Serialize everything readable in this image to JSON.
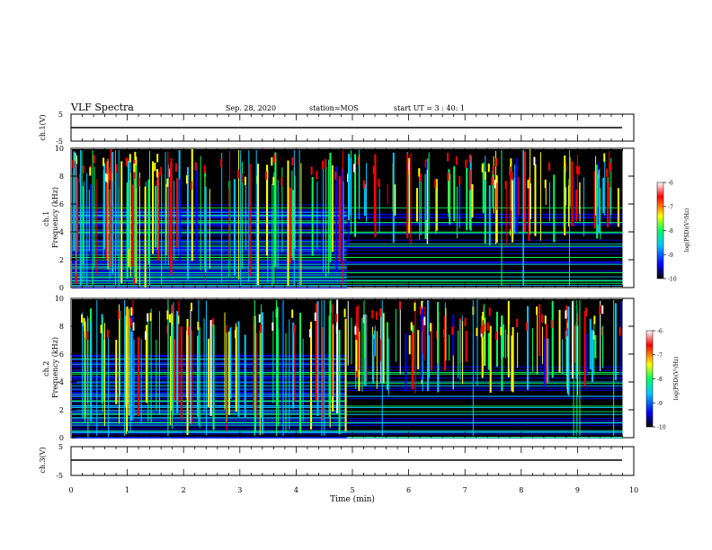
{
  "header": {
    "title": "VLF Spectra",
    "date": "Sep. 28, 2020",
    "station": "station=MOS",
    "start_time": "start UT =  3 : 40: 1"
  },
  "colors": {
    "background": "#000000",
    "colormap": [
      "#000000",
      "#0000ff",
      "#00c8ff",
      "#00ff60",
      "#ffff00",
      "#ff0000",
      "#ffffff"
    ]
  },
  "chart_data": [
    {
      "type": "line",
      "panel": "ch1-voltage",
      "ylabel": "ch.1(V)",
      "ylim": [
        -5,
        5
      ],
      "yticks": [
        "5",
        "-5"
      ],
      "x": [
        0,
        9.8
      ],
      "values": [
        0,
        0
      ]
    },
    {
      "type": "heatmap",
      "panel": "ch1-spectrogram",
      "ylabel": "ch.1\nFrequency (kHz)",
      "ylim": [
        0,
        10
      ],
      "yticks": [
        "0",
        "2",
        "4",
        "6",
        "8",
        "10"
      ],
      "xlim": [
        0,
        10
      ],
      "data_end_min": 9.8,
      "transition_min": 4.9,
      "colorbar": {
        "label": "log(PSD)(V²/Hz)",
        "range": [
          -10,
          -6
        ],
        "ticks": [
          "-6",
          "-7",
          "-8",
          "-9",
          "-10"
        ]
      }
    },
    {
      "type": "heatmap",
      "panel": "ch2-spectrogram",
      "ylabel": "ch.2\nFrequency (kHz)",
      "ylim": [
        0,
        10
      ],
      "yticks": [
        "0",
        "2",
        "4",
        "6",
        "8",
        "10"
      ],
      "xlim": [
        0,
        10
      ],
      "data_end_min": 9.8,
      "transition_min": 4.9,
      "colorbar": {
        "label": "log(PSD)(V²/Hz)",
        "range": [
          -10,
          -6
        ],
        "ticks": [
          "-6",
          "-7",
          "-8",
          "-9",
          "-10"
        ]
      }
    },
    {
      "type": "line",
      "panel": "ch3-voltage",
      "ylabel": "ch.3(V)",
      "ylim": [
        -5,
        5
      ],
      "yticks": [
        "5",
        "-5"
      ],
      "x": [
        0,
        9.8
      ],
      "values": [
        0,
        0
      ]
    }
  ],
  "xaxis": {
    "label": "Time (min)",
    "range": [
      0,
      10
    ],
    "ticks": [
      "0",
      "1",
      "2",
      "3",
      "4",
      "5",
      "6",
      "7",
      "8",
      "9",
      "10"
    ]
  }
}
